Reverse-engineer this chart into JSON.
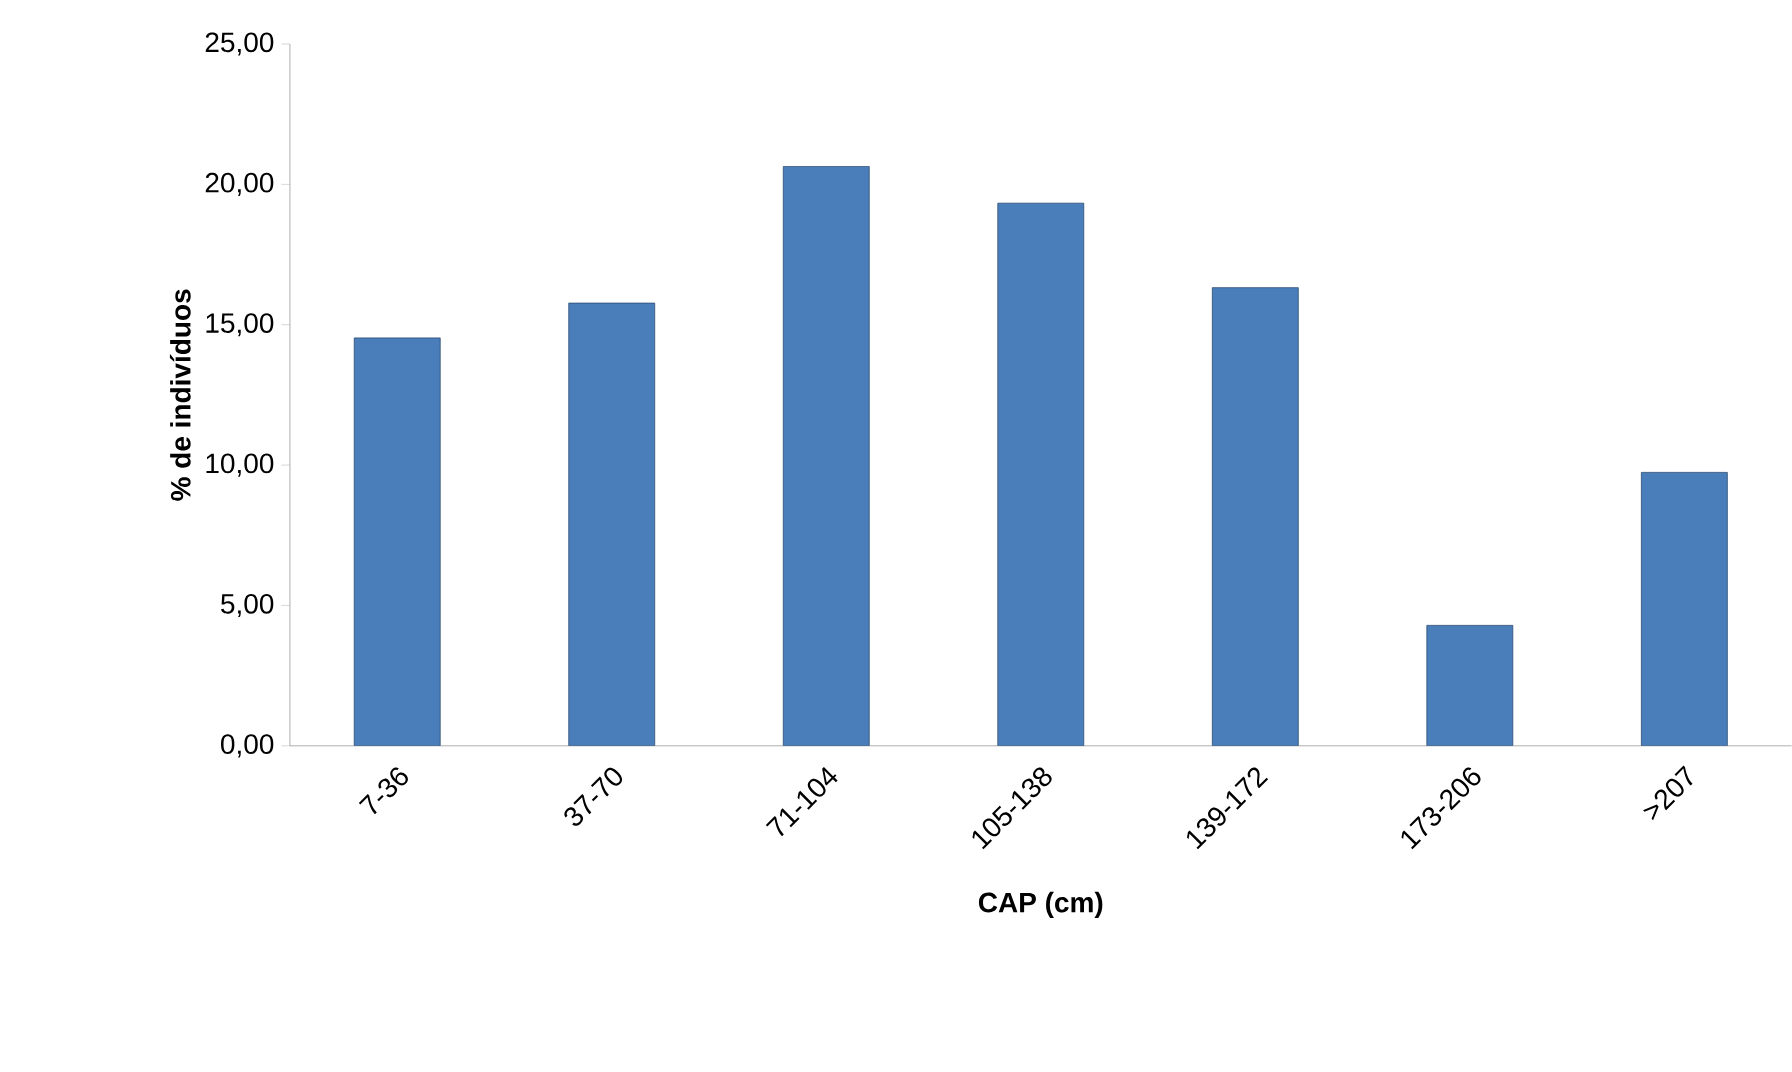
{
  "chart_data": {
    "type": "bar",
    "xlabel": "CAP (cm)",
    "ylabel": "% de indivíduos",
    "categories": [
      "7-36",
      "37-70",
      "71-104",
      "105-138",
      "139-172",
      "173-206",
      ">207"
    ],
    "values": [
      14.53,
      15.77,
      20.64,
      19.33,
      16.32,
      4.29,
      9.74
    ],
    "color": "#4a7ebb",
    "ylim": [
      0,
      25
    ],
    "yticks": [
      {
        "value": 0,
        "label": "0,00"
      },
      {
        "value": 5,
        "label": "5,00"
      },
      {
        "value": 10,
        "label": "10,00"
      },
      {
        "value": 15,
        "label": "15,00"
      },
      {
        "value": 20,
        "label": "20,00"
      },
      {
        "value": 25,
        "label": "25,00"
      }
    ],
    "grid": false
  }
}
